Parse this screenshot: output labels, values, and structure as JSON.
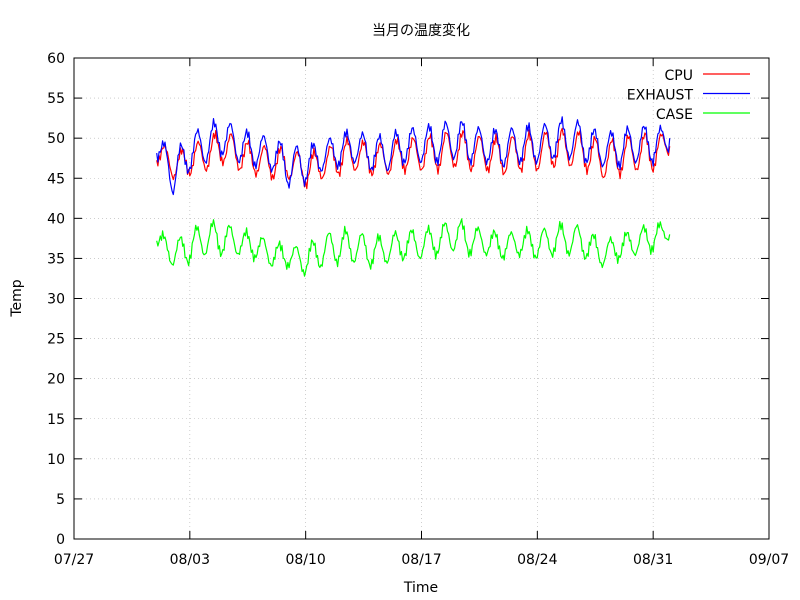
{
  "chart_data": {
    "type": "line",
    "title": "当月の温度変化",
    "xlabel": "Time",
    "ylabel": "Temp",
    "x_ticks": [
      "07/27",
      "08/03",
      "08/10",
      "08/17",
      "08/24",
      "08/31",
      "09/07"
    ],
    "y_ticks": [
      "0",
      "5",
      "10",
      "15",
      "20",
      "25",
      "30",
      "35",
      "40",
      "45",
      "50",
      "55",
      "60"
    ],
    "xlim": [
      "07/27",
      "09/07"
    ],
    "ylim": [
      0,
      60
    ],
    "grid": true,
    "legend_position": "top-right",
    "x": [
      "08/01",
      "08/02",
      "08/03",
      "08/04",
      "08/05",
      "08/06",
      "08/07",
      "08/08",
      "08/09",
      "08/10",
      "08/11",
      "08/12",
      "08/13",
      "08/14",
      "08/15",
      "08/16",
      "08/17",
      "08/18",
      "08/19",
      "08/20",
      "08/21",
      "08/22",
      "08/23",
      "08/24",
      "08/25",
      "08/26",
      "08/27",
      "08/28",
      "08/29",
      "08/30",
      "08/31",
      "09/01"
    ],
    "series": [
      {
        "name": "CPU",
        "color": "#ff0000",
        "values": [
          48,
          46.5,
          47.5,
          48.5,
          49.5,
          48,
          47.5,
          47,
          47,
          46,
          46.5,
          47.5,
          48,
          47,
          47.5,
          48,
          48,
          48.5,
          49,
          48.5,
          48,
          48,
          48.5,
          48.5,
          49,
          49,
          48.5,
          47.5,
          48,
          48.5,
          48.5,
          49
        ],
        "high": [
          50,
          48,
          49,
          50,
          51,
          50,
          49,
          49,
          48.5,
          48,
          48.5,
          49.5,
          50,
          49,
          49.5,
          50,
          50,
          50.5,
          51,
          50.5,
          50,
          50,
          50.5,
          50.5,
          51,
          51,
          50.5,
          49.5,
          50,
          50.5,
          50.5,
          50.5
        ],
        "low": [
          47,
          45,
          45.5,
          46,
          47,
          46,
          45.5,
          45,
          45,
          44,
          45,
          45.5,
          46,
          45.5,
          45.5,
          46,
          46,
          46,
          46.5,
          46,
          46,
          45.5,
          46,
          46,
          46.5,
          46.5,
          46,
          45,
          45.5,
          46,
          46,
          48
        ]
      },
      {
        "name": "EXHAUST",
        "color": "#0000ff",
        "values": [
          49,
          46,
          48.5,
          49.5,
          50.5,
          49,
          48.5,
          48,
          47.5,
          47,
          47.5,
          48.5,
          49,
          48,
          48.5,
          49,
          49.5,
          49.5,
          50,
          49.5,
          49,
          49,
          49.5,
          49.5,
          50,
          50,
          49.5,
          48.5,
          49,
          49.5,
          49.5,
          50
        ],
        "high": [
          50.5,
          48,
          50.5,
          51.5,
          52.5,
          51,
          50.5,
          50,
          49,
          49,
          49.5,
          50.5,
          51,
          50,
          50.5,
          51,
          51.5,
          51.5,
          52.5,
          51.5,
          51,
          51,
          51.5,
          51.5,
          52,
          52.5,
          51.5,
          50.5,
          51,
          51.5,
          51.5,
          51
        ],
        "low": [
          47.5,
          43,
          46,
          47,
          48,
          47,
          46.5,
          46,
          44,
          44.5,
          46,
          46.5,
          47,
          46,
          46,
          47,
          47,
          47,
          47.5,
          47,
          47,
          46.5,
          47,
          47,
          47.5,
          47.5,
          47,
          46.5,
          46.5,
          47,
          47,
          48.5
        ]
      },
      {
        "name": "CASE",
        "color": "#00ff00",
        "values": [
          37.5,
          35,
          36,
          37.5,
          37.5,
          37,
          36.5,
          35.5,
          35.5,
          34.5,
          35.5,
          36,
          36.5,
          35.5,
          36,
          36.5,
          36.5,
          37,
          38,
          37.5,
          37,
          36.5,
          37,
          36.5,
          37,
          37.5,
          37,
          35,
          36.5,
          37,
          37.5,
          38
        ],
        "high": [
          38.5,
          37,
          38.5,
          39.5,
          39.5,
          38.5,
          38,
          37,
          36.5,
          36.5,
          38,
          38.5,
          38.5,
          37.5,
          38,
          38.5,
          38.5,
          39,
          40,
          39,
          38.5,
          38,
          38.5,
          38.5,
          39,
          39.5,
          38.5,
          37,
          38,
          38.5,
          39.5,
          39
        ],
        "low": [
          36.5,
          34,
          34.5,
          35.5,
          35.5,
          35.5,
          35,
          34,
          34,
          33,
          34,
          34.5,
          34.5,
          34,
          34.5,
          35,
          35,
          35.5,
          36,
          35.5,
          35.5,
          35,
          35.5,
          35,
          35.5,
          35.5,
          35,
          34,
          35,
          35.5,
          36,
          37.5
        ]
      }
    ]
  }
}
